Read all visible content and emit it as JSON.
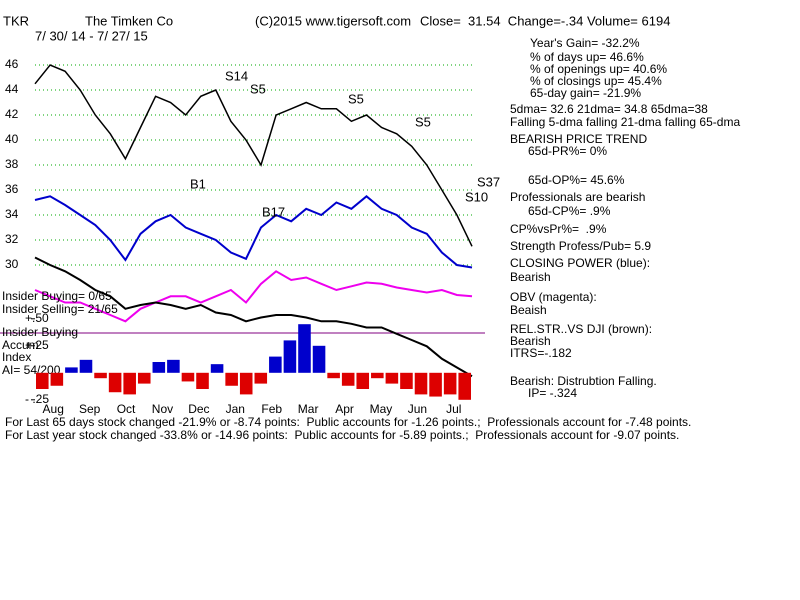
{
  "header": {
    "ticker": "TKR",
    "company": "The Timken Co",
    "copyright": "(C)2015 www.tigersoft.com",
    "quote": "Close=  31.54  Change=-.34 Volume= 6194",
    "range": "7/ 30/ 14 - 7/ 27/ 15"
  },
  "side_panel": [
    "Year's Gain= -32.2%",
    "% of days up= 46.6%",
    "% of openings up= 40.6%",
    "% of closings up= 45.4%",
    "65-day gain= -21.9%",
    "5dma= 32.6 21dma= 34.8 65dma=38",
    "Falling 5-dma falling 21-dma falling 65-dma",
    "BEARISH PRICE TREND",
    "65d-PR%= 0%",
    "65d-OP%= 45.6%",
    "Professionals are bearish",
    "65d-CP%= .9%",
    "CP%vsPr%=  .9%",
    "Strength Profess/Pub= 5.9",
    "CLOSING POWER (blue):",
    "Bearish",
    "OBV (magenta):",
    "Beaish",
    "REL.STR..VS DJI (brown):",
    "Bearish",
    "ITRS=-.182",
    "Bearish: Distrubtion Falling.",
    "IP= -.324"
  ],
  "footer": [
    "For Last 65 days stock changed -21.9% or -8.74 points:  Public accounts for -1.26 points.;  Professionals account for -7.48 points.",
    "For Last year stock changed -33.8% or -14.96 points:  Public accounts for -5.89 points.;  Professionals account for -9.07 points."
  ],
  "chart_data": [
    {
      "type": "line",
      "x_labels": [
        "Aug",
        "Sep",
        "Oct",
        "Nov",
        "Dec",
        "Jan",
        "Feb",
        "Mar",
        "Apr",
        "May",
        "Jun",
        "Jul"
      ],
      "ylim": [
        18,
        50
      ],
      "yticks": [
        30,
        32,
        34,
        36,
        38,
        40,
        42,
        44,
        46
      ],
      "grid": true,
      "annotations": [
        "S14",
        "S5",
        "S5",
        "S5",
        "B1",
        "B17",
        "S37",
        "S10"
      ],
      "series": [
        {
          "name": "Price",
          "color": "#000000",
          "values": [
            44.5,
            46,
            45.5,
            44,
            42,
            40.5,
            38.5,
            41,
            43.5,
            43,
            42,
            43.5,
            44,
            41.5,
            40,
            38,
            42,
            42.5,
            43,
            42.5,
            42.5,
            41.5,
            42,
            41,
            40.5,
            39.5,
            38,
            36,
            34,
            31.5
          ]
        },
        {
          "name": "Closing Power",
          "color": "#0000cc",
          "values": [
            35.2,
            35.5,
            34.8,
            34,
            33.2,
            32,
            30.4,
            32.5,
            33.5,
            34,
            33,
            32.5,
            32,
            31,
            30.5,
            33,
            34,
            33.5,
            34.5,
            34,
            35,
            34.5,
            35.5,
            34.5,
            34,
            33,
            32.5,
            31,
            30,
            29.8
          ]
        },
        {
          "name": "OBV",
          "color": "#ee00ee",
          "values": [
            28,
            27.5,
            27,
            27,
            26.5,
            26,
            25.5,
            26.5,
            27,
            27.5,
            27.5,
            27,
            27.5,
            28,
            27,
            28.5,
            29.5,
            28.8,
            29,
            28.5,
            28,
            28.3,
            28.6,
            28.5,
            28.2,
            28,
            27.8,
            28,
            27.6,
            27.5
          ]
        },
        {
          "name": "Rel Str",
          "color": "#000000",
          "values": [
            30.6,
            30,
            29.5,
            28.8,
            28,
            27.5,
            26.5,
            26.8,
            27,
            26.8,
            26.5,
            26.8,
            26.2,
            26,
            25.5,
            25.8,
            26,
            26,
            25.8,
            25.5,
            25.5,
            25.3,
            25,
            25,
            24.5,
            24,
            23.5,
            22.5,
            21.8,
            21.1
          ]
        }
      ]
    },
    {
      "type": "bar",
      "texts": [
        "Insider Buying= 0/65",
        "Insider Selling= 21/65",
        "Insider Buying",
        "Accum",
        "Index",
        "AI= 54/200"
      ],
      "ylim": [
        -0.4,
        0.6
      ],
      "yticks": [
        {
          "value": 0.5,
          "label": "+.50"
        },
        {
          "value": 0.25,
          "label": "+.25"
        },
        {
          "value": -0.25,
          "label": "- .25"
        }
      ],
      "pos_color": "#0000cc",
      "neg_color": "#dd0000",
      "values": [
        -0.15,
        -0.12,
        0.05,
        0.12,
        -0.05,
        -0.18,
        -0.2,
        -0.1,
        0.1,
        0.12,
        -0.08,
        -0.15,
        0.08,
        -0.12,
        -0.2,
        -0.1,
        0.15,
        0.3,
        0.45,
        0.25,
        -0.05,
        -0.12,
        -0.15,
        -0.05,
        -0.1,
        -0.15,
        -0.2,
        -0.22,
        -0.2,
        -0.25
      ]
    }
  ]
}
